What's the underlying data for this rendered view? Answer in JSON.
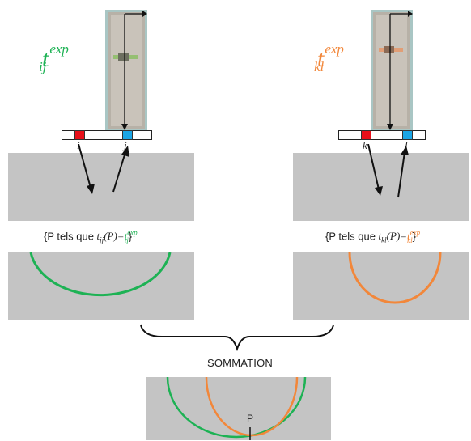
{
  "left": {
    "title": {
      "base": "t",
      "sup": "exp",
      "sub": "ij"
    },
    "index_a": "i",
    "index_b": "j",
    "set_label": {
      "open": "{P tels que ",
      "lhs_base": "t",
      "lhs_sub": "ij",
      "lhs_arg": "(P)=",
      "rhs_base": "t",
      "rhs_sup": "exp",
      "rhs_sub": "ij",
      "close": "}"
    }
  },
  "right": {
    "title": {
      "base": "t",
      "sup": "exp",
      "sub": "kl"
    },
    "index_a": "k",
    "index_b": "l",
    "set_label": {
      "open": "{P tels que ",
      "lhs_base": "t",
      "lhs_sub": "kl",
      "lhs_arg": "(P)=",
      "rhs_base": "t",
      "rhs_sup": "exp",
      "rhs_sub": "kl",
      "close": "}"
    }
  },
  "summation_label": "SOMMATION",
  "point_label": "P",
  "colors": {
    "green": "#1db254",
    "orange": "#f2873a",
    "gray_panel": "#c4c4c4",
    "red_element": "#e8101a",
    "blue_element": "#1aa6e6"
  }
}
